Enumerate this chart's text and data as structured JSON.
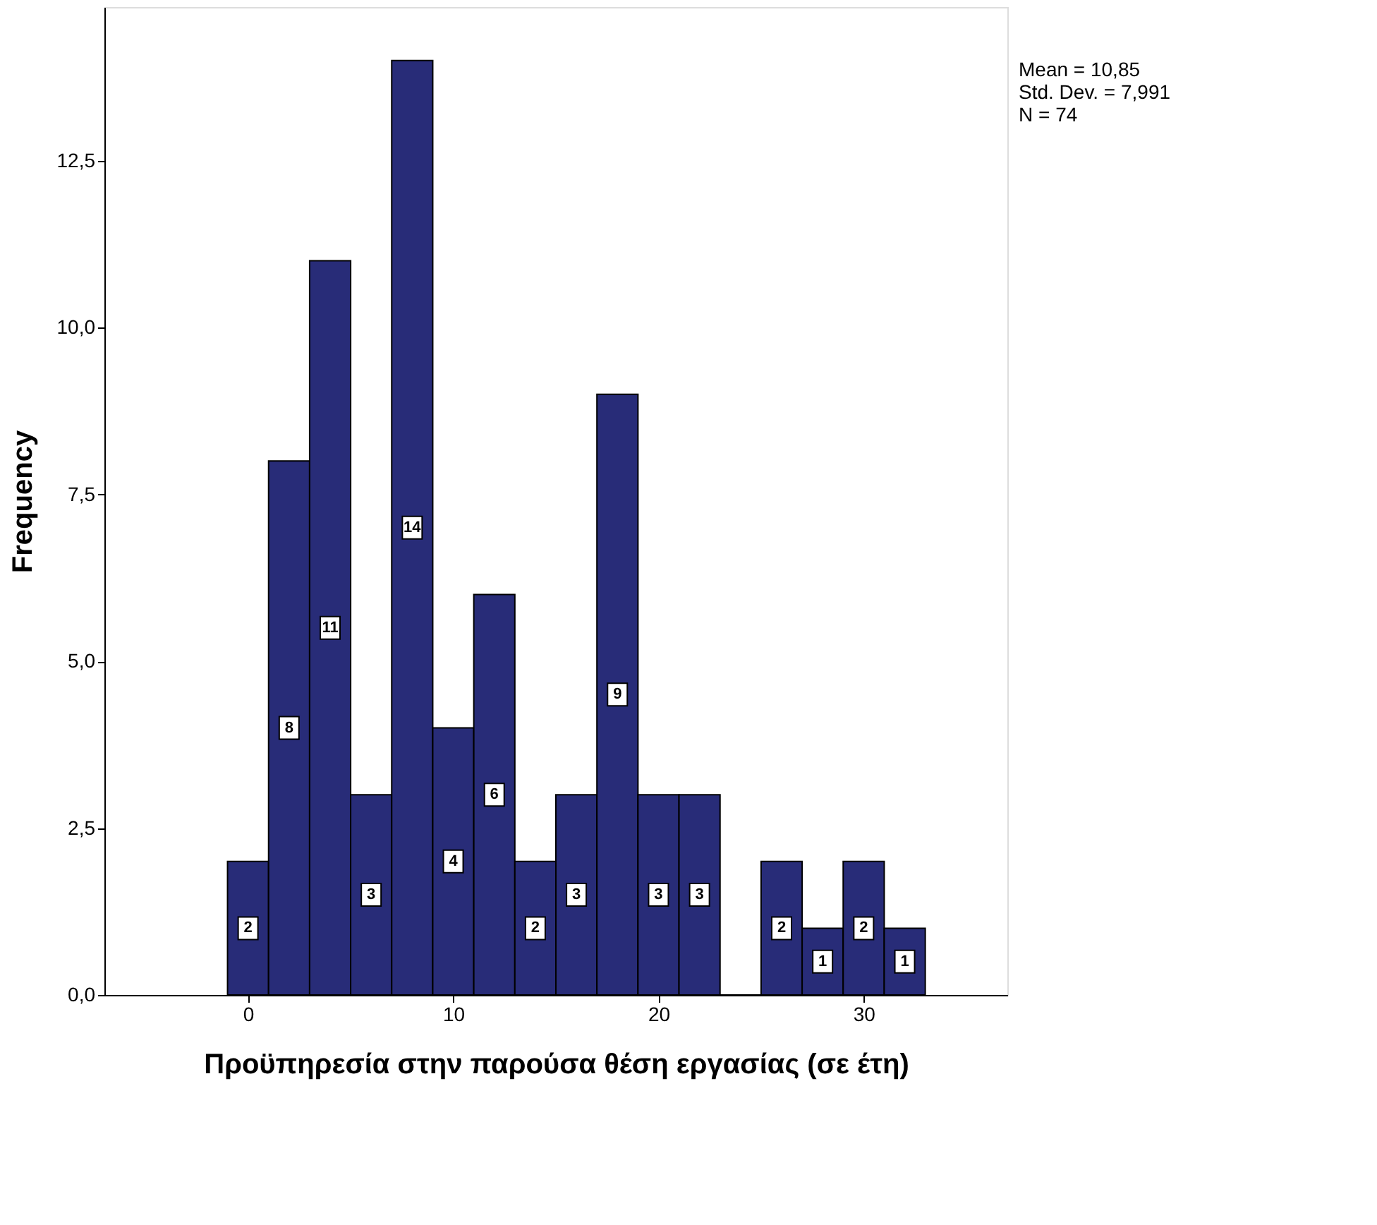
{
  "chart_data": {
    "type": "histogram",
    "xlabel": "Προϋπηρεσία στην παρούσα θέση εργασίας (σε έτη)",
    "ylabel": "Frequency",
    "bins": [
      -1,
      1,
      3,
      5,
      7,
      9,
      11,
      13,
      15,
      17,
      19,
      21,
      23,
      25,
      27,
      29,
      31,
      33
    ],
    "values": [
      2,
      8,
      11,
      3,
      14,
      4,
      6,
      2,
      3,
      9,
      3,
      3,
      0,
      2,
      1,
      2,
      1
    ],
    "value_labels": [
      "2",
      "8",
      "11",
      "3",
      "14",
      "4",
      "6",
      "2",
      "3",
      "9",
      "3",
      "3",
      null,
      "2",
      "1",
      "2",
      "1"
    ],
    "color": "#282c78",
    "xlim": [
      -7,
      37
    ],
    "xticks": [
      0,
      10,
      20,
      30
    ],
    "ylim": [
      0,
      14.8
    ],
    "yticks": [
      {
        "value": 0,
        "label": "0,0"
      },
      {
        "value": 2.5,
        "label": "2,5"
      },
      {
        "value": 5,
        "label": "5,0"
      },
      {
        "value": 7.5,
        "label": "7,5"
      },
      {
        "value": 10,
        "label": "10,0"
      },
      {
        "value": 12.5,
        "label": "12,5"
      }
    ],
    "grid": false,
    "annotations": [
      "Mean = 10,85",
      "Std. Dev. = 7,991",
      "N = 74"
    ]
  }
}
